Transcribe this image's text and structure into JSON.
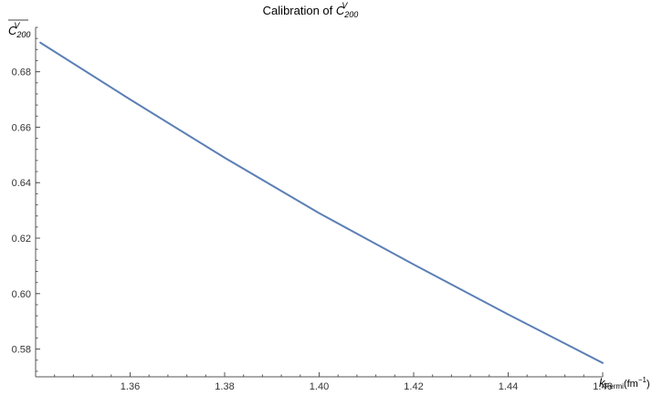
{
  "chart_data": {
    "type": "line",
    "title": {
      "prefix": "Calibration of ",
      "symbol": "C",
      "superscript": "V",
      "subscript": "200"
    },
    "ylabel": {
      "symbol": "C",
      "superscript": "V",
      "subscript": "200",
      "overline": true
    },
    "xlabel": {
      "symbol": "k",
      "subscript": "Fermi",
      "unit_open": "(fm",
      "unit_superscript": "−1",
      "unit_close": ")"
    },
    "xlim": [
      1.34,
      1.46
    ],
    "ylim": [
      0.57,
      0.696
    ],
    "xticks_major": [
      1.36,
      1.38,
      1.4,
      1.42,
      1.44,
      1.46
    ],
    "xtick_labels": [
      "1.36",
      "1.38",
      "1.40",
      "1.42",
      "1.44",
      "1.46"
    ],
    "yticks_major": [
      0.58,
      0.6,
      0.62,
      0.64,
      0.66,
      0.68
    ],
    "ytick_labels": [
      "0.58",
      "0.60",
      "0.62",
      "0.64",
      "0.66",
      "0.68"
    ],
    "grid": false,
    "color": "#5b7fb5",
    "series": [
      {
        "x": [
          1.341,
          1.36,
          1.38,
          1.4,
          1.42,
          1.44,
          1.46
        ],
        "y": [
          0.6905,
          0.67,
          0.649,
          0.629,
          0.6105,
          0.5925,
          0.575
        ]
      }
    ]
  }
}
